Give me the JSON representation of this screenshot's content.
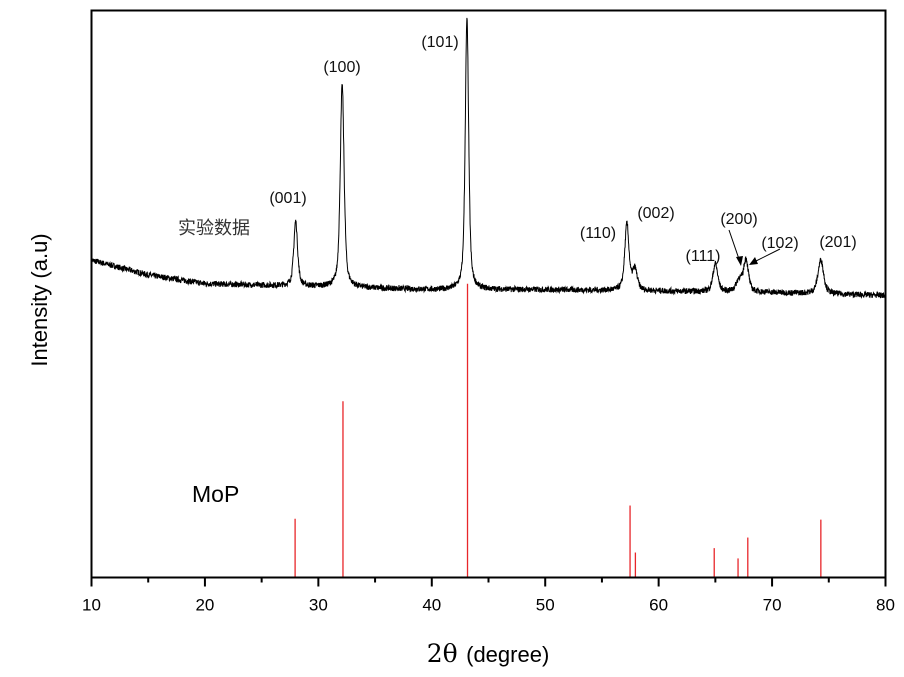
{
  "chart_data": {
    "type": "line",
    "title": "",
    "xlabel_symbol": "2θ",
    "xlabel_unit": "(degree)",
    "ylabel": "Intensity (a.u)",
    "xlim": [
      10,
      80
    ],
    "ylim": [
      0,
      193
    ],
    "xticks": [
      "10",
      "20",
      "30",
      "40",
      "50",
      "60",
      "70",
      "80"
    ],
    "minor_xtick_step": 5,
    "yticks": [],
    "grid": false,
    "series": [
      {
        "name": "实验数据",
        "color": "#000000",
        "baseline": {
          "x": [
            10,
            15,
            20,
            30,
            40,
            50,
            60,
            70,
            80
          ],
          "y": [
            108,
            103,
            100,
            99,
            98,
            98,
            97.5,
            97,
            96
          ]
        },
        "peaks": [
          {
            "x": 28.0,
            "height": 22,
            "hwhm": 0.2
          },
          {
            "x": 32.1,
            "height": 69,
            "hwhm": 0.2
          },
          {
            "x": 43.1,
            "height": 92,
            "hwhm": 0.18
          },
          {
            "x": 57.2,
            "height": 22.5,
            "hwhm": 0.22
          },
          {
            "x": 57.9,
            "height": 7,
            "hwhm": 0.25
          },
          {
            "x": 65.0,
            "height": 9.5,
            "hwhm": 0.25
          },
          {
            "x": 67.1,
            "height": 4,
            "hwhm": 0.3
          },
          {
            "x": 67.7,
            "height": 11,
            "hwhm": 0.25
          },
          {
            "x": 74.3,
            "height": 11.5,
            "hwhm": 0.3
          }
        ],
        "noise_amplitude": 1.0
      },
      {
        "name": "MoP",
        "type": "stick",
        "color": "#e8262a",
        "x": [
          27.95,
          32.17,
          43.15,
          57.48,
          57.95,
          64.9,
          67.0,
          67.86,
          74.3
        ],
        "y": [
          20,
          60,
          100,
          24.5,
          8.5,
          10,
          6.5,
          13.6,
          19.7
        ]
      }
    ],
    "annotations": [
      {
        "text": "(001)",
        "x": 28.0
      },
      {
        "text": "(100)",
        "x": 32.1
      },
      {
        "text": "(101)",
        "x": 43.1
      },
      {
        "text": "(110)",
        "x": 57.2
      },
      {
        "text": "(002)",
        "x": 57.9
      },
      {
        "text": "(111)",
        "x": 65.0
      },
      {
        "text": "(200)",
        "x": 67.1
      },
      {
        "text": "(102)",
        "x": 67.7
      },
      {
        "text": "(201)",
        "x": 74.3
      }
    ],
    "series_labels": {
      "experimental": "实验数据",
      "reference": "MoP"
    }
  }
}
